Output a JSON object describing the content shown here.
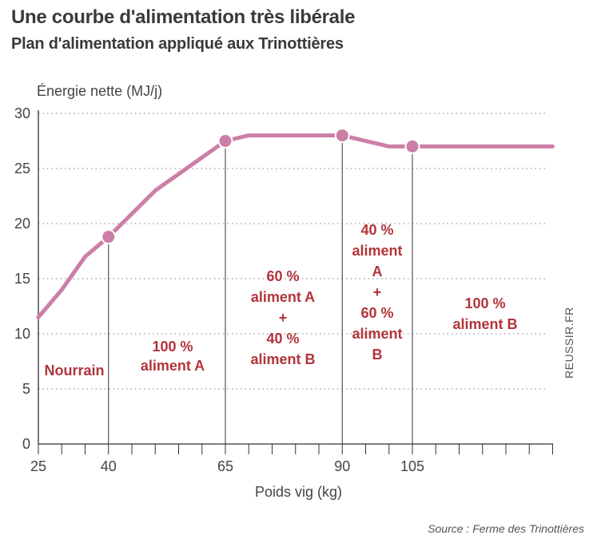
{
  "title": "Une courbe d'alimentation très libérale",
  "subtitle": "Plan d'alimentation appliqué aux Trinottières",
  "source": "Source : Ferme des Trinottières",
  "watermark": "REUSSIR.FR",
  "colors": {
    "line": "#cc7fa6",
    "zone_text": "#b2343a",
    "grid": "#999999"
  },
  "chart_data": {
    "type": "line",
    "title": "Plan d'alimentation appliqué aux Trinottières",
    "xlabel": "Poids vig (kg)",
    "ylabel": "Énergie nette (MJ/j)",
    "xlim": [
      25,
      137
    ],
    "ylim": [
      0,
      30
    ],
    "x_ticks": [
      25,
      40,
      65,
      90,
      105
    ],
    "y_ticks": [
      0,
      5,
      10,
      15,
      20,
      25,
      30
    ],
    "grid": "horizontal-dotted",
    "series": [
      {
        "x": [
          25,
          30,
          35,
          40,
          50,
          60,
          65,
          70,
          80,
          90,
          100,
          105,
          110,
          120,
          130,
          135
        ],
        "values": [
          11.5,
          14,
          17,
          18.8,
          23,
          26,
          27.5,
          28,
          28,
          28,
          27,
          27,
          27,
          27,
          27,
          27
        ]
      }
    ],
    "markers": [
      {
        "x": 40,
        "y": 18.8
      },
      {
        "x": 65,
        "y": 27.5
      },
      {
        "x": 90,
        "y": 28
      },
      {
        "x": 105,
        "y": 27
      }
    ],
    "dividers": [
      40,
      65,
      90,
      105
    ],
    "zones": [
      {
        "lines": [
          "Nourrain"
        ]
      },
      {
        "lines": [
          "100 %",
          "aliment A"
        ]
      },
      {
        "lines": [
          "60 %",
          "aliment A",
          "+",
          "40 %",
          "aliment B"
        ]
      },
      {
        "lines": [
          "40 %",
          "aliment",
          "A",
          "+",
          "60 %",
          "aliment",
          "B"
        ]
      },
      {
        "lines": [
          "100 %",
          "aliment B"
        ]
      }
    ]
  }
}
